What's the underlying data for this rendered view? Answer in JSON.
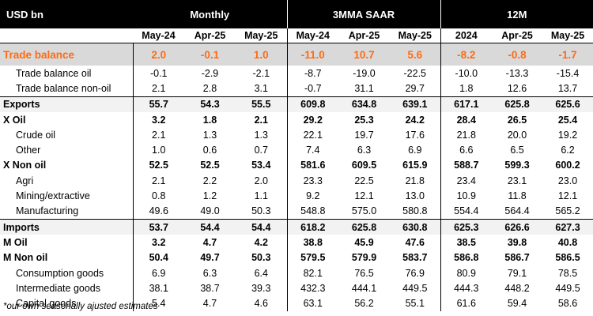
{
  "header": {
    "unit": "USD bn",
    "groups": [
      "Monthly",
      "3MMA SAAR",
      "12M"
    ],
    "columns": [
      "May-24",
      "Apr-25",
      "May-25",
      "May-24",
      "Apr-25",
      "May-25",
      "2024",
      "Apr-25",
      "May-25"
    ]
  },
  "rows": [
    {
      "label": "Trade balance",
      "values": [
        "2.0",
        "-0.1",
        "1.0",
        "-11.0",
        "10.7",
        "5.6",
        "-8.2",
        "-0.8",
        "-1.7"
      ]
    },
    {
      "label": "Trade balance oil",
      "values": [
        "-0.1",
        "-2.9",
        "-2.1",
        "-8.7",
        "-19.0",
        "-22.5",
        "-10.0",
        "-13.3",
        "-15.4"
      ]
    },
    {
      "label": "Trade balance non-oil",
      "values": [
        "2.1",
        "2.8",
        "3.1",
        "-0.7",
        "31.1",
        "29.7",
        "1.8",
        "12.6",
        "13.7"
      ]
    },
    {
      "label": "Exports",
      "values": [
        "55.7",
        "54.3",
        "55.5",
        "609.8",
        "634.8",
        "639.1",
        "617.1",
        "625.8",
        "625.6"
      ]
    },
    {
      "label": "X Oil",
      "values": [
        "3.2",
        "1.8",
        "2.1",
        "29.2",
        "25.3",
        "24.2",
        "28.4",
        "26.5",
        "25.4"
      ]
    },
    {
      "label": "Crude oil",
      "values": [
        "2.1",
        "1.3",
        "1.3",
        "22.1",
        "19.7",
        "17.6",
        "21.8",
        "20.0",
        "19.2"
      ]
    },
    {
      "label": "Other",
      "values": [
        "1.0",
        "0.6",
        "0.7",
        "7.4",
        "6.3",
        "6.9",
        "6.6",
        "6.5",
        "6.2"
      ]
    },
    {
      "label": "X Non oil",
      "values": [
        "52.5",
        "52.5",
        "53.4",
        "581.6",
        "609.5",
        "615.9",
        "588.7",
        "599.3",
        "600.2"
      ]
    },
    {
      "label": "Agri",
      "values": [
        "2.1",
        "2.2",
        "2.0",
        "23.3",
        "22.5",
        "21.8",
        "23.4",
        "23.1",
        "23.0"
      ]
    },
    {
      "label": "Mining/extractive",
      "values": [
        "0.8",
        "1.2",
        "1.1",
        "9.2",
        "12.1",
        "13.0",
        "10.9",
        "11.8",
        "12.1"
      ]
    },
    {
      "label": "Manufacturing",
      "values": [
        "49.6",
        "49.0",
        "50.3",
        "548.8",
        "575.0",
        "580.8",
        "554.4",
        "564.4",
        "565.2"
      ]
    },
    {
      "label": "Imports",
      "values": [
        "53.7",
        "54.4",
        "54.4",
        "618.2",
        "625.8",
        "630.8",
        "625.3",
        "626.6",
        "627.3"
      ]
    },
    {
      "label": "M Oil",
      "values": [
        "3.2",
        "4.7",
        "4.2",
        "38.8",
        "45.9",
        "47.6",
        "38.5",
        "39.8",
        "40.8"
      ]
    },
    {
      "label": "M Non oil",
      "values": [
        "50.4",
        "49.7",
        "50.3",
        "579.5",
        "579.9",
        "583.7",
        "586.8",
        "586.7",
        "586.5"
      ]
    },
    {
      "label": "Consumption goods",
      "values": [
        "6.9",
        "6.3",
        "6.4",
        "82.1",
        "76.5",
        "76.9",
        "80.9",
        "79.1",
        "78.5"
      ]
    },
    {
      "label": "Intermediate goods",
      "values": [
        "38.1",
        "38.7",
        "39.3",
        "432.3",
        "444.1",
        "449.5",
        "444.3",
        "448.2",
        "449.5"
      ]
    },
    {
      "label": "Capital goods",
      "values": [
        "5.4",
        "4.7",
        "4.6",
        "63.1",
        "56.2",
        "55.1",
        "61.6",
        "59.4",
        "58.6"
      ]
    }
  ],
  "footnote": "*our own seasonally ajusted estimates",
  "colors": {
    "header_bg": "#000000",
    "highlight_text": "#ff6a13",
    "highlight_bg": "#d9d9d9",
    "shade_bg": "#f2f2f2"
  }
}
